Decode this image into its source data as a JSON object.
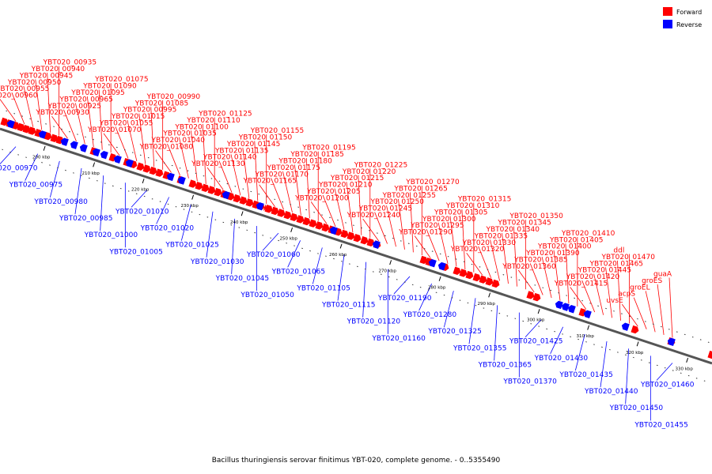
{
  "caption": "Bacillus thuringiensis serovar finitimus YBT-020, complete genome. - 0..5355490",
  "legend": {
    "forward": {
      "label": "Forward",
      "color": "#ff0000"
    },
    "reverse": {
      "label": "Reverse",
      "color": "#0000ff"
    }
  },
  "axis": {
    "ticks": [
      "200 kbp",
      "210 kbp",
      "220 kbp",
      "230 kbp",
      "240 kbp",
      "250 kbp",
      "260 kbp",
      "270 kbp",
      "280 kbp",
      "290 kbp",
      "300 kbp",
      "310 kbp",
      "320 kbp",
      "330 kbp"
    ]
  },
  "forward_labels": [
    "YBT020_00960",
    "YBT020_00955",
    "YBT020_00950",
    "YBT020_00945",
    "YBT020_00940",
    "YBT020_00935",
    "YBT020_00930",
    "YBT020_00925",
    "YBT020_00965",
    "YBT020_01095",
    "YBT020_01090",
    "YBT020_01075",
    "YBT020_01070",
    "YBT020_01055",
    "YBT020_01015",
    "YBT020_00995",
    "YBT020_01085",
    "YBT020_00990",
    "YBT020_01080",
    "YBT020_01040",
    "YBT020_01035",
    "YBT020_01100",
    "YBT020_01110",
    "YBT020_01125",
    "YBT020_01130",
    "YBT020_01140",
    "YBT020_01135",
    "YBT020_01145",
    "YBT020_01150",
    "YBT020_01155",
    "YBT020_01165",
    "YBT020_01170",
    "YBT020_01175",
    "YBT020_01180",
    "YBT020_01185",
    "YBT020_01195",
    "YBT020_01200",
    "YBT020_01205",
    "YBT020_01210",
    "YBT020_01215",
    "YBT020_01220",
    "YBT020_01225",
    "YBT020_01240",
    "YBT020_01245",
    "YBT020_01250",
    "YBT020_01255",
    "YBT020_01265",
    "YBT020_01270",
    "YBT020_01290",
    "YBT020_01295",
    "YBT020_01300",
    "YBT020_01305",
    "YBT020_01310",
    "YBT020_01315",
    "YBT020_01320",
    "YBT020_01330",
    "YBT020_01335",
    "YBT020_01340",
    "YBT020_01345",
    "YBT020_01350",
    "YBT020_01360",
    "YBT020_01385",
    "YBT020_01390",
    "YBT020_01400",
    "YBT020_01405",
    "YBT020_01410",
    "YBT020_01415",
    "YBT020_01420",
    "YBT020_01445",
    "YBT020_01465",
    "YBT020_01470",
    "ddl",
    "uvsE",
    "acpS",
    "groEL",
    "groES",
    "guaA"
  ],
  "reverse_labels": [
    "YBT020_00970",
    "YBT020_00975",
    "YBT020_00980",
    "YBT020_00985",
    "YBT020_01000",
    "YBT020_01005",
    "YBT020_01010",
    "YBT020_01020",
    "YBT020_01025",
    "YBT020_01030",
    "YBT020_01045",
    "YBT020_01050",
    "YBT020_01060",
    "YBT020_01065",
    "YBT020_01105",
    "YBT020_01115",
    "YBT020_01120",
    "YBT020_01160",
    "YBT020_01190",
    "YBT020_01280",
    "YBT020_01325",
    "YBT020_01355",
    "YBT020_01365",
    "YBT020_01370",
    "YBT020_01425",
    "YBT020_01430",
    "YBT020_01435",
    "YBT020_01440",
    "YBT020_01450",
    "YBT020_01455",
    "YBT020_01460"
  ]
}
